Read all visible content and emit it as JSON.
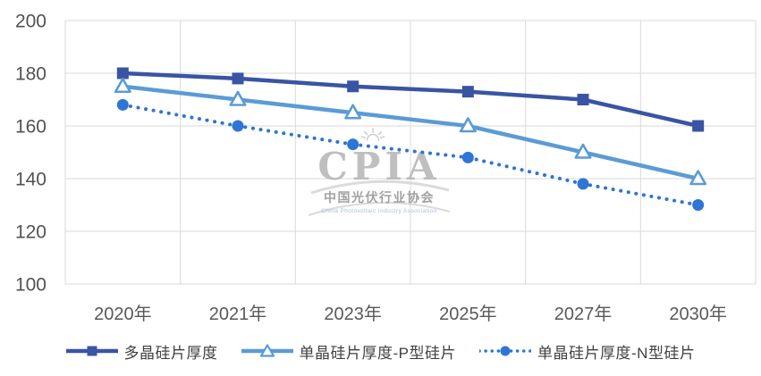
{
  "chart_data": {
    "type": "line",
    "categories": [
      "2020年",
      "2021年",
      "2023年",
      "2025年",
      "2027年",
      "2030年"
    ],
    "series": [
      {
        "name": "多晶硅片厚度",
        "values": [
          180,
          178,
          175,
          173,
          170,
          160
        ],
        "color": "#3A54A4",
        "marker": "square",
        "line": "solid"
      },
      {
        "name": "单晶硅片厚度-P型硅片",
        "values": [
          175,
          170,
          165,
          160,
          150,
          140
        ],
        "color": "#5B9BD5",
        "marker": "triangle",
        "line": "solid"
      },
      {
        "name": "单晶硅片厚度-N型硅片",
        "values": [
          168,
          160,
          153,
          148,
          138,
          130
        ],
        "color": "#2E75D6",
        "marker": "circle",
        "line": "dotted"
      }
    ],
    "title": "",
    "xlabel": "",
    "ylabel": "",
    "ylim": [
      100,
      200
    ],
    "yticks": [
      200,
      180,
      160,
      140,
      120,
      100
    ],
    "grid": true,
    "legend_position": "bottom"
  },
  "watermark": {
    "logo": "CPIA",
    "cn": "中国光伏行业协会",
    "en": "China Photovoltaic Industry Association"
  },
  "colors": {
    "grid": "#D9D9D9",
    "axis_text": "#595959",
    "legend_text": "#404040"
  }
}
